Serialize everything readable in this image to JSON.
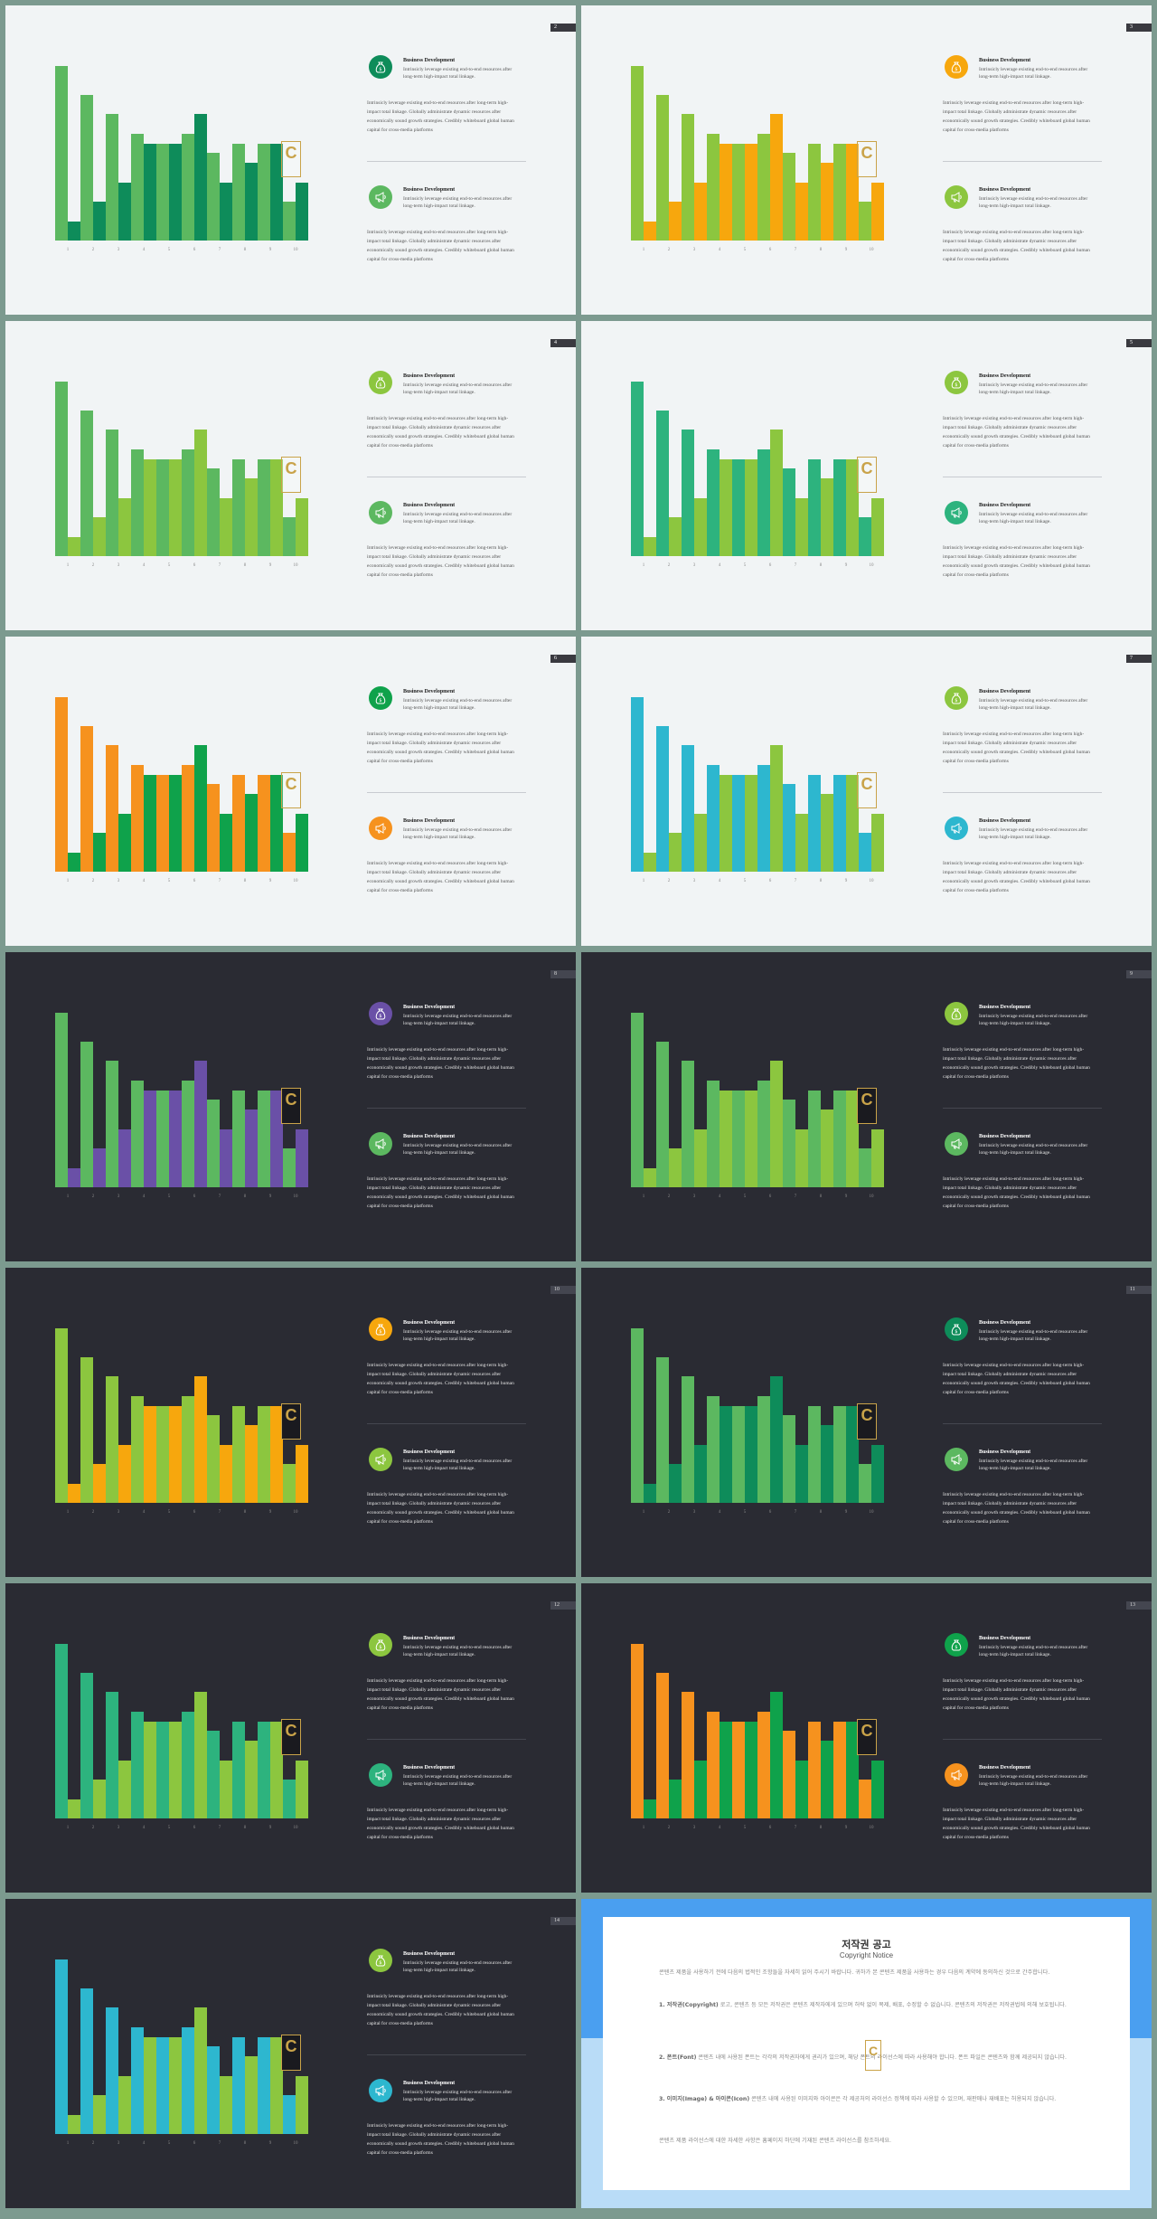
{
  "heading": "Business Development",
  "sub_text": "Intrinsicly leverage existing end-to-end resources after long-term high-impact total linkage.",
  "para_text": "Intrinsicly leverage existing end-to-end resources after long-term high-impact total linkage. Globally administrate dynamic resources after economically sound growth strategies. Credibly whiteboard global human capital for cross-media platforms",
  "logo_letter": "C",
  "chart_data": {
    "type": "bar",
    "categories": [
      "1",
      "2",
      "3",
      "4",
      "5",
      "6",
      "7",
      "8",
      "9",
      "10"
    ],
    "series": [
      {
        "values": [
          90,
          75,
          65,
          55,
          50,
          55,
          45,
          50,
          50,
          20
        ]
      },
      {
        "values": [
          10,
          20,
          30,
          50,
          50,
          65,
          30,
          40,
          50,
          30
        ]
      }
    ]
  },
  "slides": [
    {
      "page": "2",
      "theme": "light",
      "colors": [
        "#5cb860",
        "#0e8c5a"
      ],
      "icon1": "#0e8c5a",
      "icon2": "#5cb860"
    },
    {
      "page": "3",
      "theme": "light",
      "colors": [
        "#8cc63f",
        "#f7a70d"
      ],
      "icon1": "#f7a70d",
      "icon2": "#8cc63f"
    },
    {
      "page": "4",
      "theme": "light",
      "colors": [
        "#5cb860",
        "#8cc63f"
      ],
      "icon1": "#8cc63f",
      "icon2": "#5cb860"
    },
    {
      "page": "5",
      "theme": "light",
      "colors": [
        "#2db37e",
        "#8cc63f"
      ],
      "icon1": "#8cc63f",
      "icon2": "#2db37e"
    },
    {
      "page": "6",
      "theme": "light",
      "colors": [
        "#f6921e",
        "#0fa24b"
      ],
      "icon1": "#0fa24b",
      "icon2": "#f6921e"
    },
    {
      "page": "7",
      "theme": "light",
      "colors": [
        "#2db7cf",
        "#8cc63f"
      ],
      "icon1": "#8cc63f",
      "icon2": "#2db7cf"
    },
    {
      "page": "8",
      "theme": "dark",
      "colors": [
        "#5cb860",
        "#6a50a7"
      ],
      "icon1": "#6a50a7",
      "icon2": "#5cb860"
    },
    {
      "page": "9",
      "theme": "dark",
      "colors": [
        "#5cb860",
        "#8cc63f"
      ],
      "icon1": "#8cc63f",
      "icon2": "#5cb860"
    },
    {
      "page": "10",
      "theme": "dark",
      "colors": [
        "#8cc63f",
        "#f7a70d"
      ],
      "icon1": "#f7a70d",
      "icon2": "#8cc63f"
    },
    {
      "page": "11",
      "theme": "dark",
      "colors": [
        "#5cb860",
        "#0e8c5a"
      ],
      "icon1": "#0e8c5a",
      "icon2": "#5cb860"
    },
    {
      "page": "12",
      "theme": "dark",
      "colors": [
        "#2db37e",
        "#8cc63f"
      ],
      "icon1": "#8cc63f",
      "icon2": "#2db37e"
    },
    {
      "page": "13",
      "theme": "dark",
      "colors": [
        "#f6921e",
        "#0fa24b"
      ],
      "icon1": "#0fa24b",
      "icon2": "#f6921e"
    },
    {
      "page": "14",
      "theme": "dark",
      "colors": [
        "#2db7cf",
        "#8cc63f"
      ],
      "icon1": "#8cc63f",
      "icon2": "#2db7cf"
    }
  ],
  "notice": {
    "title": "저작권 공고",
    "subtitle": "Copyright Notice",
    "intro": "콘텐츠 제품을 사용하기 전에 다음의 법적인 조항들을 자세히 읽어 주시기 바랍니다. 귀하가 본 콘텐츠 제품을 사용하는 경우 다음의 계약에 동의하신 것으로 간주합니다.",
    "p1_label": "1. 저작권(Copyright)",
    "p1": " 로고, 콘텐츠 등 모든 저작권은 콘텐츠 제작자에게 있으며 허락 없이 복제, 배포, 수정할 수 없습니다. 콘텐츠의 저작권은 저작권법에 의해 보호됩니다.",
    "p2_label": "2. 폰트(Font)",
    "p2": " 콘텐츠 내에 사용된 폰트는 각각의 저작권자에게 권리가 있으며, 해당 폰트의 라이선스에 따라 사용해야 합니다. 폰트 파일은 콘텐츠와 함께 제공되지 않습니다.",
    "p3_label": "3. 이미지(Image) & 아이콘(Icon)",
    "p3": " 콘텐츠 내에 사용된 이미지와 아이콘은 각 제공처의 라이선스 정책에 따라 사용할 수 있으며, 재판매나 재배포는 허용되지 않습니다.",
    "outro": "콘텐츠 제품 라이선스에 대한 자세한 사항은 홈페이지 하단에 기재된 콘텐츠 라이선스를 참조하세요."
  }
}
